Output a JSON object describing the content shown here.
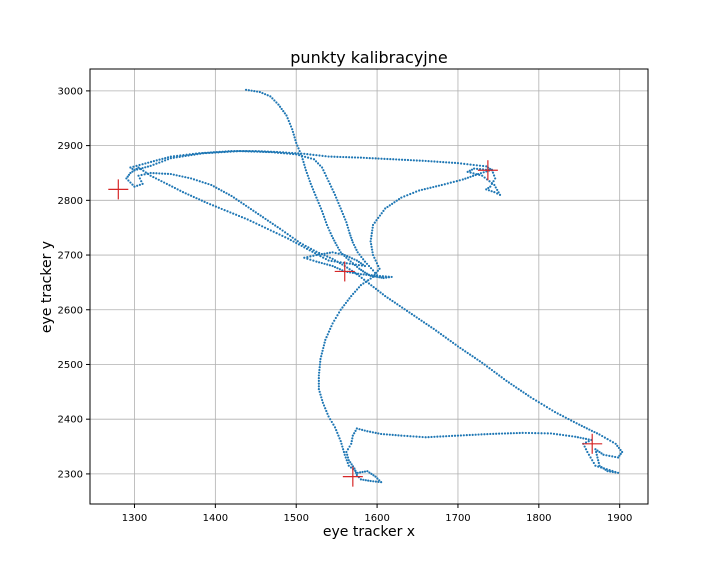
{
  "chart_data": {
    "type": "scatter",
    "title": "punkty kalibracyjne",
    "xlabel": "eye tracker x",
    "ylabel": "eye tracker y",
    "xlim": [
      1245,
      1935
    ],
    "ylim": [
      2245,
      3040
    ],
    "xticks": [
      1300,
      1400,
      1500,
      1600,
      1700,
      1800,
      1900
    ],
    "yticks": [
      2300,
      2400,
      2500,
      2600,
      2700,
      2800,
      2900,
      3000
    ],
    "grid": true,
    "colors": {
      "gaze": "#1f77b4",
      "calibration": "#d62728",
      "grid": "#b0b0b0"
    },
    "calibration_points": [
      {
        "x": 1280,
        "y": 2820
      },
      {
        "x": 1737,
        "y": 2855
      },
      {
        "x": 1560,
        "y": 2670
      },
      {
        "x": 1570,
        "y": 2295
      },
      {
        "x": 1866,
        "y": 2355
      }
    ],
    "gaze_path": [
      [
        1438,
        3002
      ],
      [
        1455,
        2998
      ],
      [
        1468,
        2990
      ],
      [
        1478,
        2975
      ],
      [
        1488,
        2955
      ],
      [
        1495,
        2930
      ],
      [
        1500,
        2905
      ],
      [
        1507,
        2880
      ],
      [
        1512,
        2855
      ],
      [
        1518,
        2830
      ],
      [
        1525,
        2805
      ],
      [
        1532,
        2780
      ],
      [
        1538,
        2755
      ],
      [
        1544,
        2735
      ],
      [
        1550,
        2718
      ],
      [
        1555,
        2705
      ],
      [
        1562,
        2695
      ],
      [
        1570,
        2685
      ],
      [
        1578,
        2675
      ],
      [
        1585,
        2668
      ],
      [
        1592,
        2662
      ],
      [
        1600,
        2660
      ],
      [
        1608,
        2658
      ],
      [
        1618,
        2660
      ],
      [
        1600,
        2662
      ],
      [
        1580,
        2665
      ],
      [
        1560,
        2670
      ],
      [
        1545,
        2680
      ],
      [
        1525,
        2688
      ],
      [
        1510,
        2695
      ],
      [
        1525,
        2700
      ],
      [
        1545,
        2705
      ],
      [
        1560,
        2700
      ],
      [
        1575,
        2690
      ],
      [
        1585,
        2680
      ],
      [
        1540,
        2690
      ],
      [
        1490,
        2730
      ],
      [
        1440,
        2765
      ],
      [
        1390,
        2795
      ],
      [
        1360,
        2815
      ],
      [
        1340,
        2830
      ],
      [
        1320,
        2845
      ],
      [
        1305,
        2860
      ],
      [
        1295,
        2850
      ],
      [
        1290,
        2840
      ],
      [
        1300,
        2825
      ],
      [
        1310,
        2830
      ],
      [
        1305,
        2845
      ],
      [
        1320,
        2850
      ],
      [
        1345,
        2848
      ],
      [
        1370,
        2840
      ],
      [
        1395,
        2828
      ],
      [
        1420,
        2808
      ],
      [
        1450,
        2778
      ],
      [
        1480,
        2748
      ],
      [
        1505,
        2722
      ],
      [
        1525,
        2706
      ],
      [
        1545,
        2693
      ],
      [
        1560,
        2680
      ],
      [
        1575,
        2665
      ],
      [
        1590,
        2648
      ],
      [
        1610,
        2625
      ],
      [
        1640,
        2595
      ],
      [
        1670,
        2565
      ],
      [
        1700,
        2533
      ],
      [
        1730,
        2503
      ],
      [
        1760,
        2470
      ],
      [
        1790,
        2440
      ],
      [
        1820,
        2413
      ],
      [
        1850,
        2390
      ],
      [
        1875,
        2372
      ],
      [
        1895,
        2355
      ],
      [
        1903,
        2340
      ],
      [
        1898,
        2330
      ],
      [
        1880,
        2335
      ],
      [
        1870,
        2345
      ],
      [
        1875,
        2315
      ],
      [
        1885,
        2305
      ],
      [
        1898,
        2302
      ],
      [
        1870,
        2315
      ],
      [
        1860,
        2340
      ],
      [
        1855,
        2355
      ],
      [
        1865,
        2362
      ],
      [
        1845,
        2368
      ],
      [
        1815,
        2374
      ],
      [
        1780,
        2375
      ],
      [
        1740,
        2373
      ],
      [
        1700,
        2370
      ],
      [
        1660,
        2367
      ],
      [
        1630,
        2370
      ],
      [
        1605,
        2373
      ],
      [
        1588,
        2378
      ],
      [
        1575,
        2383
      ],
      [
        1570,
        2370
      ],
      [
        1568,
        2355
      ],
      [
        1562,
        2340
      ],
      [
        1565,
        2325
      ],
      [
        1572,
        2310
      ],
      [
        1575,
        2298
      ],
      [
        1580,
        2290
      ],
      [
        1592,
        2287
      ],
      [
        1605,
        2285
      ],
      [
        1598,
        2295
      ],
      [
        1588,
        2305
      ],
      [
        1576,
        2302
      ],
      [
        1565,
        2315
      ],
      [
        1560,
        2335
      ],
      [
        1555,
        2360
      ],
      [
        1548,
        2385
      ],
      [
        1540,
        2405
      ],
      [
        1533,
        2430
      ],
      [
        1528,
        2455
      ],
      [
        1528,
        2480
      ],
      [
        1530,
        2510
      ],
      [
        1536,
        2545
      ],
      [
        1545,
        2575
      ],
      [
        1555,
        2600
      ],
      [
        1568,
        2625
      ],
      [
        1580,
        2645
      ],
      [
        1595,
        2660
      ],
      [
        1603,
        2675
      ],
      [
        1595,
        2700
      ],
      [
        1592,
        2725
      ],
      [
        1595,
        2755
      ],
      [
        1610,
        2785
      ],
      [
        1630,
        2805
      ],
      [
        1652,
        2818
      ],
      [
        1680,
        2828
      ],
      [
        1706,
        2838
      ],
      [
        1725,
        2848
      ],
      [
        1742,
        2856
      ],
      [
        1746,
        2840
      ],
      [
        1740,
        2825
      ],
      [
        1735,
        2820
      ],
      [
        1745,
        2815
      ],
      [
        1752,
        2810
      ],
      [
        1745,
        2828
      ],
      [
        1730,
        2845
      ],
      [
        1712,
        2852
      ],
      [
        1720,
        2858
      ],
      [
        1742,
        2855
      ],
      [
        1735,
        2862
      ],
      [
        1700,
        2868
      ],
      [
        1660,
        2872
      ],
      [
        1620,
        2875
      ],
      [
        1580,
        2878
      ],
      [
        1540,
        2880
      ],
      [
        1510,
        2885
      ],
      [
        1480,
        2888
      ],
      [
        1450,
        2890
      ],
      [
        1420,
        2890
      ],
      [
        1380,
        2886
      ],
      [
        1345,
        2880
      ],
      [
        1310,
        2866
      ],
      [
        1295,
        2860
      ],
      [
        1300,
        2855
      ],
      [
        1320,
        2863
      ],
      [
        1345,
        2877
      ],
      [
        1385,
        2886
      ],
      [
        1430,
        2890
      ],
      [
        1470,
        2888
      ],
      [
        1500,
        2884
      ],
      [
        1522,
        2875
      ],
      [
        1532,
        2860
      ],
      [
        1540,
        2835
      ],
      [
        1548,
        2810
      ],
      [
        1555,
        2785
      ],
      [
        1562,
        2760
      ],
      [
        1566,
        2740
      ],
      [
        1570,
        2723
      ],
      [
        1576,
        2705
      ],
      [
        1585,
        2688
      ],
      [
        1595,
        2672
      ],
      [
        1600,
        2663
      ]
    ]
  }
}
